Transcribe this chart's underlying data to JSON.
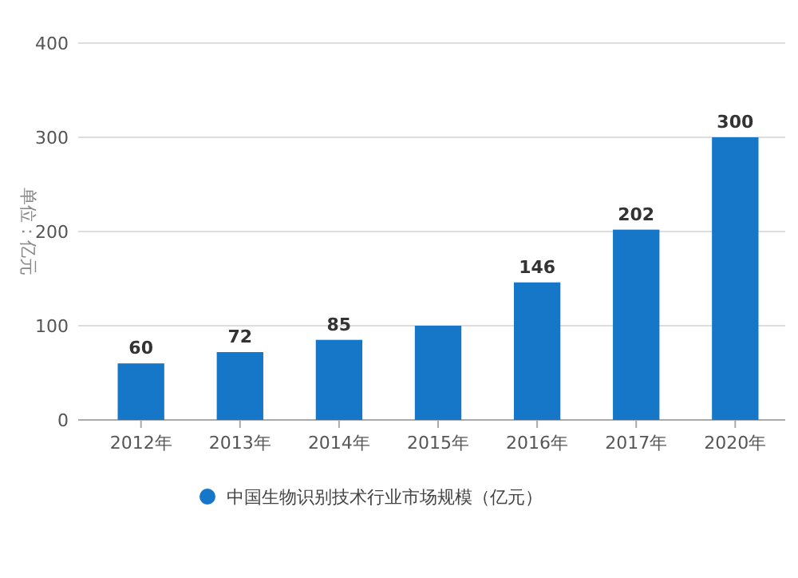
{
  "chart_data": {
    "type": "bar",
    "ylabel": "单位：亿元",
    "categories": [
      "2012年",
      "2013年",
      "2014年",
      "2015年",
      "2016年",
      "2017年",
      "2020年"
    ],
    "series": [
      {
        "name": "中国生物识别技术行业市场规模（亿元）",
        "color": "#1677c8",
        "values": [
          60,
          72,
          85,
          100,
          146,
          202,
          300
        ],
        "value_labels": [
          "60",
          "72",
          "85",
          null,
          "146",
          "202",
          "300"
        ]
      }
    ],
    "ylim": [
      0,
      400
    ],
    "yticks": [
      0,
      100,
      200,
      300,
      400
    ],
    "grid": "y",
    "legend": "bottom"
  }
}
